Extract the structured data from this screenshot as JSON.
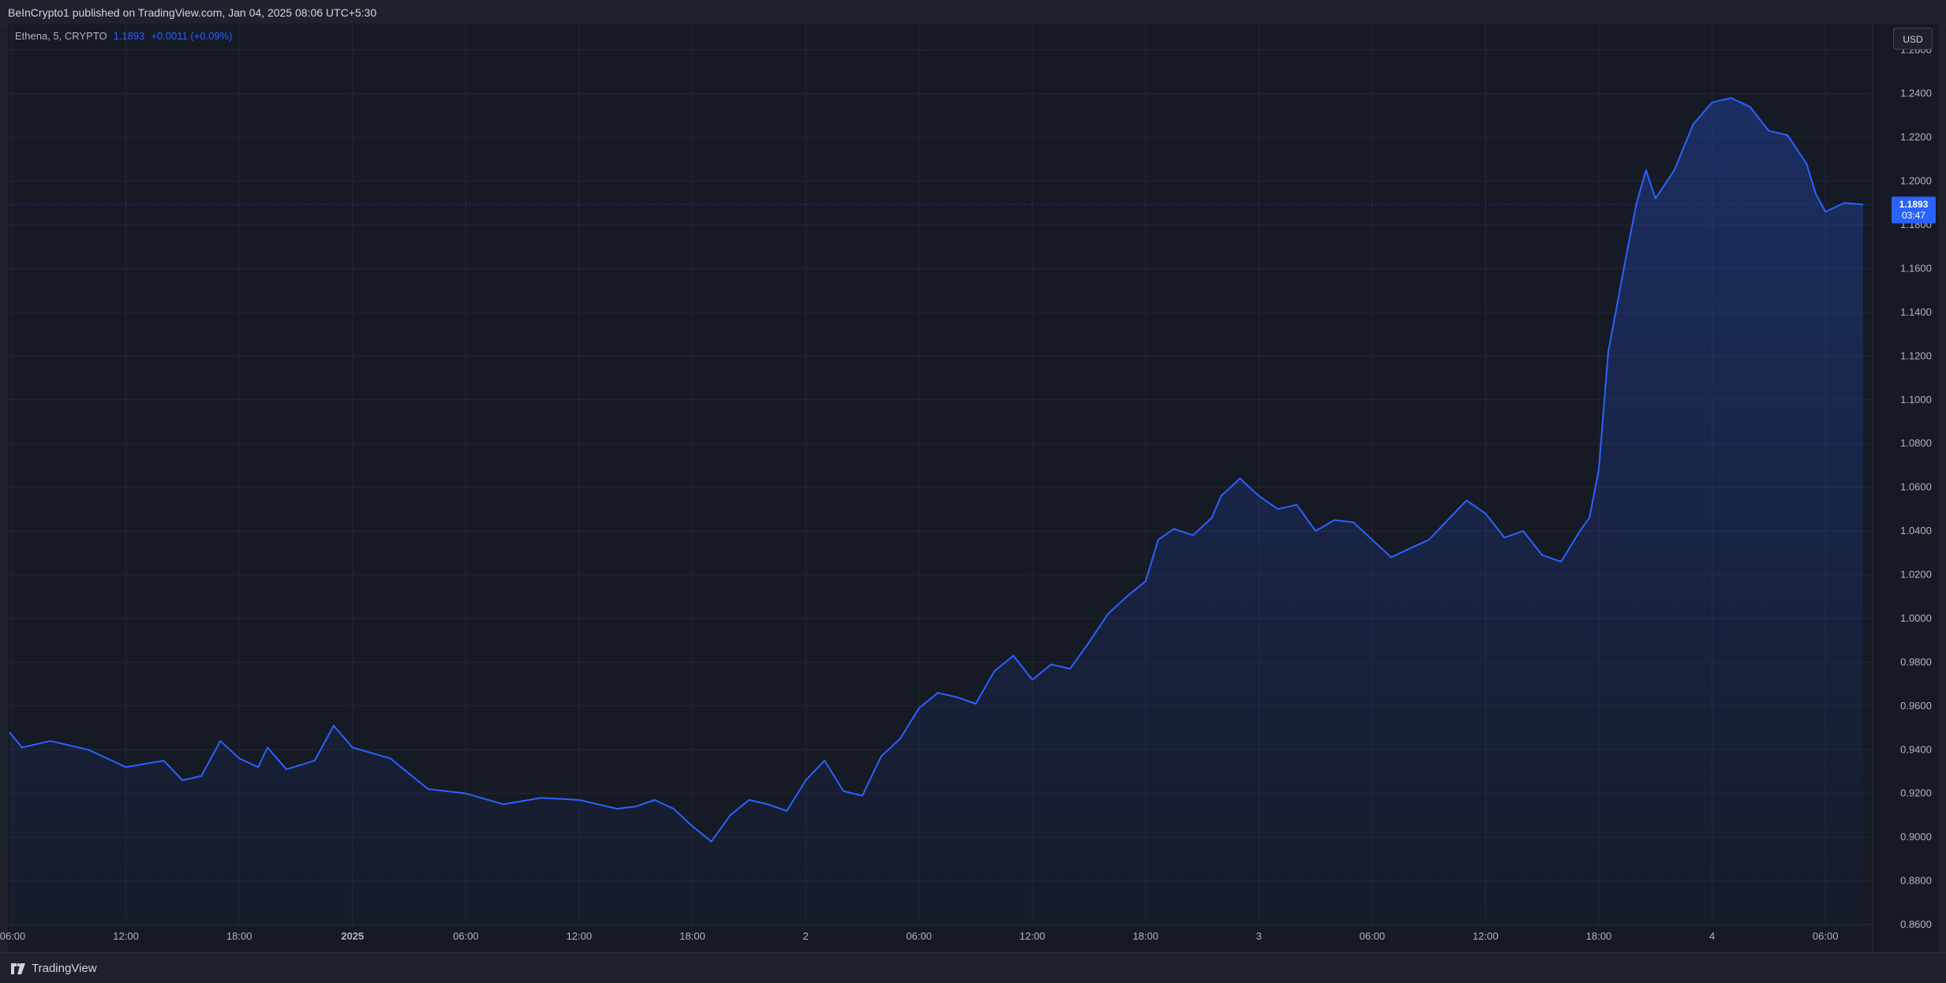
{
  "publisher_line": "BeInCrypto1 published on TradingView.com, Jan 04, 2025 08:06 UTC+5:30",
  "legend": {
    "symbol": "Ethena, 5, CRYPTO",
    "last": "1.1893",
    "change": "+0.0011 (+0.09%)"
  },
  "currency_button": "USD",
  "price_label": {
    "price": "1.1893",
    "countdown": "03:47"
  },
  "brand": "TradingView",
  "colors": {
    "line": "#2962ff",
    "background": "#161a25",
    "grid": "#232733",
    "axis_text": "#b2b5be",
    "price_label_bg": "#2962ff"
  },
  "chart_data": {
    "type": "area",
    "title": "",
    "ylabel": "",
    "xlabel": "",
    "y_ticks": [
      "1.2600",
      "1.2400",
      "1.2200",
      "1.2000",
      "1.1800",
      "1.1600",
      "1.1400",
      "1.1200",
      "1.1000",
      "1.0800",
      "1.0600",
      "1.0400",
      "1.0200",
      "1.0000",
      "0.9800",
      "0.9600",
      "0.9400",
      "0.9200",
      "0.9000",
      "0.8800",
      "0.8600"
    ],
    "x_ticks": [
      "06:00",
      "12:00",
      "18:00",
      "2025",
      "06:00",
      "12:00",
      "18:00",
      "2",
      "06:00",
      "12:00",
      "18:00",
      "3",
      "06:00",
      "12:00",
      "18:00",
      "4",
      "06:00"
    ],
    "ylim": [
      0.86,
      1.272
    ],
    "xlim_hours": [
      "Dec 31 05:45",
      "Jan 04 08:30"
    ],
    "grid": true,
    "last_value": 1.1893,
    "series": [
      {
        "x": [
          "Dec 31 05:50",
          "Dec 31 06:30",
          "Dec 31 08:00",
          "Dec 31 10:00",
          "Dec 31 12:00",
          "Dec 31 14:00",
          "Dec 31 15:00",
          "Dec 31 16:00",
          "Dec 31 17:00",
          "Dec 31 18:00",
          "Dec 31 19:00",
          "Dec 31 19:30",
          "Dec 31 20:30",
          "Dec 31 22:00",
          "Dec 31 23:00",
          "Jan 01 00:00",
          "Jan 01 02:00",
          "Jan 01 04:00",
          "Jan 01 06:00",
          "Jan 01 08:00",
          "Jan 01 10:00",
          "Jan 01 12:00",
          "Jan 01 14:00",
          "Jan 01 15:00",
          "Jan 01 16:00",
          "Jan 01 17:00",
          "Jan 01 18:00",
          "Jan 01 19:00",
          "Jan 01 20:00",
          "Jan 01 21:00",
          "Jan 01 22:00",
          "Jan 01 23:00",
          "Jan 02 00:00",
          "Jan 02 01:00",
          "Jan 02 02:00",
          "Jan 02 03:00",
          "Jan 02 04:00",
          "Jan 02 05:00",
          "Jan 02 06:00",
          "Jan 02 07:00",
          "Jan 02 08:00",
          "Jan 02 09:00",
          "Jan 02 10:00",
          "Jan 02 11:00",
          "Jan 02 12:00",
          "Jan 02 13:00",
          "Jan 02 14:00",
          "Jan 02 15:00",
          "Jan 02 16:00",
          "Jan 02 17:00",
          "Jan 02 18:00",
          "Jan 02 18:40",
          "Jan 02 19:30",
          "Jan 02 20:30",
          "Jan 02 21:30",
          "Jan 02 22:00",
          "Jan 02 23:00",
          "Jan 03 00:00",
          "Jan 03 01:00",
          "Jan 03 02:00",
          "Jan 03 03:00",
          "Jan 03 04:00",
          "Jan 03 05:00",
          "Jan 03 06:00",
          "Jan 03 07:00",
          "Jan 03 08:00",
          "Jan 03 09:00",
          "Jan 03 10:00",
          "Jan 03 11:00",
          "Jan 03 12:00",
          "Jan 03 13:00",
          "Jan 03 14:00",
          "Jan 03 15:00",
          "Jan 03 16:00",
          "Jan 03 17:00",
          "Jan 03 17:30",
          "Jan 03 18:00",
          "Jan 03 18:30",
          "Jan 03 19:00",
          "Jan 03 19:30",
          "Jan 03 20:00",
          "Jan 03 20:30",
          "Jan 03 21:00",
          "Jan 03 22:00",
          "Jan 03 23:00",
          "Jan 04 00:00",
          "Jan 04 01:00",
          "Jan 04 02:00",
          "Jan 04 03:00",
          "Jan 04 04:00",
          "Jan 04 05:00",
          "Jan 04 05:30",
          "Jan 04 06:00",
          "Jan 04 07:00",
          "Jan 04 08:00"
        ],
        "values": [
          0.948,
          0.941,
          0.944,
          0.94,
          0.932,
          0.935,
          0.926,
          0.928,
          0.944,
          0.936,
          0.932,
          0.941,
          0.931,
          0.935,
          0.951,
          0.941,
          0.936,
          0.922,
          0.92,
          0.915,
          0.918,
          0.917,
          0.913,
          0.914,
          0.917,
          0.913,
          0.905,
          0.898,
          0.91,
          0.917,
          0.915,
          0.912,
          0.926,
          0.935,
          0.921,
          0.919,
          0.937,
          0.945,
          0.959,
          0.966,
          0.964,
          0.961,
          0.976,
          0.983,
          0.972,
          0.979,
          0.977,
          0.989,
          1.002,
          1.01,
          1.017,
          1.036,
          1.041,
          1.038,
          1.046,
          1.056,
          1.064,
          1.056,
          1.05,
          1.052,
          1.04,
          1.045,
          1.044,
          1.036,
          1.028,
          1.032,
          1.036,
          1.045,
          1.054,
          1.048,
          1.037,
          1.04,
          1.029,
          1.026,
          1.04,
          1.046,
          1.068,
          1.122,
          1.145,
          1.168,
          1.19,
          1.205,
          1.192,
          1.205,
          1.226,
          1.236,
          1.238,
          1.234,
          1.223,
          1.221,
          1.208,
          1.194,
          1.186,
          1.19,
          1.1893
        ]
      }
    ]
  }
}
